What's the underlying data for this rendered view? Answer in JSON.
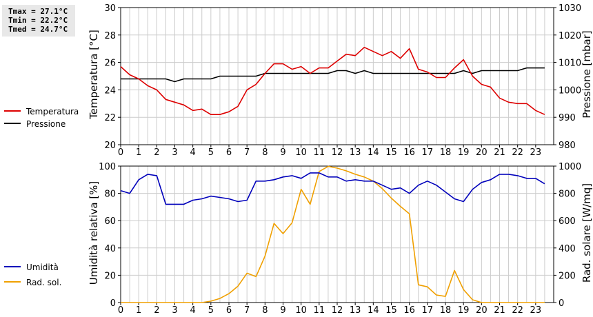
{
  "stats": {
    "tmax": "Tmax = 27.1°C",
    "tmin": "Tmin = 22.2°C",
    "tmed": "Tmed = 24.7°C"
  },
  "colors": {
    "temperature": "#dd0000",
    "pressure": "#000000",
    "humidity": "#0000bb",
    "radiation": "#f0a000",
    "grid": "#cccccc"
  },
  "chart_data": [
    {
      "type": "line",
      "x_ticks": [
        "0",
        "1",
        "2",
        "3",
        "4",
        "5",
        "6",
        "7",
        "8",
        "9",
        "10",
        "11",
        "12",
        "13",
        "14",
        "15",
        "16",
        "17",
        "18",
        "19",
        "20",
        "21",
        "22",
        "23"
      ],
      "xlim": [
        0,
        24
      ],
      "ylabel": "Temperatura [°C]",
      "ylim": [
        20,
        30
      ],
      "y_ticks": [
        "20",
        "22",
        "24",
        "26",
        "28",
        "30"
      ],
      "y2label": "Pressione [mbar]",
      "y2lim": [
        980,
        1030
      ],
      "y2_ticks": [
        "980",
        "990",
        "1000",
        "1010",
        "1020",
        "1030"
      ],
      "grid": true,
      "legend": [
        "Temperatura",
        "Pressione"
      ],
      "series": [
        {
          "name": "Temperatura",
          "axis": "left",
          "x": [
            0,
            0.5,
            1,
            1.5,
            2,
            2.5,
            3,
            3.5,
            4,
            4.5,
            5,
            5.5,
            6,
            6.5,
            7,
            7.5,
            8,
            8.5,
            9,
            9.5,
            10,
            10.5,
            11,
            11.5,
            12,
            12.5,
            13,
            13.5,
            14,
            14.5,
            15,
            15.5,
            16,
            16.5,
            17,
            17.5,
            18,
            18.5,
            19,
            19.5,
            20,
            20.5,
            21,
            21.5,
            22,
            22.5,
            23,
            23.5
          ],
          "y": [
            25.7,
            25.1,
            24.8,
            24.3,
            24.0,
            23.3,
            23.1,
            22.9,
            22.5,
            22.6,
            22.2,
            22.2,
            22.4,
            22.8,
            24.0,
            24.4,
            25.2,
            25.9,
            25.9,
            25.5,
            25.7,
            25.2,
            25.6,
            25.6,
            26.1,
            26.6,
            26.5,
            27.1,
            26.8,
            26.5,
            26.8,
            26.3,
            27.0,
            25.5,
            25.3,
            24.9,
            24.9,
            25.6,
            26.2,
            25.0,
            24.4,
            24.2,
            23.4,
            23.1,
            23.0,
            23.0,
            22.5,
            22.2
          ]
        },
        {
          "name": "Pressione",
          "axis": "right",
          "x": [
            0,
            0.5,
            1,
            1.5,
            2,
            2.5,
            3,
            3.5,
            4,
            4.5,
            5,
            5.5,
            6,
            6.5,
            7,
            7.5,
            8,
            8.5,
            9,
            9.5,
            10,
            10.5,
            11,
            11.5,
            12,
            12.5,
            13,
            13.5,
            14,
            14.5,
            15,
            15.5,
            16,
            16.5,
            17,
            17.5,
            18,
            18.5,
            19,
            19.5,
            20,
            20.5,
            21,
            21.5,
            22,
            22.5,
            23,
            23.5
          ],
          "y": [
            1004,
            1004,
            1004,
            1004,
            1004,
            1004,
            1003,
            1004,
            1004,
            1004,
            1004,
            1005,
            1005,
            1005,
            1005,
            1005,
            1006,
            1006,
            1006,
            1006,
            1006,
            1006,
            1006,
            1006,
            1007,
            1007,
            1006,
            1007,
            1006,
            1006,
            1006,
            1006,
            1006,
            1006,
            1006,
            1006,
            1006,
            1006,
            1007,
            1006,
            1007,
            1007,
            1007,
            1007,
            1007,
            1008,
            1008,
            1008
          ]
        }
      ]
    },
    {
      "type": "line",
      "x_ticks": [
        "0",
        "1",
        "2",
        "3",
        "4",
        "5",
        "6",
        "7",
        "8",
        "9",
        "10",
        "11",
        "12",
        "13",
        "14",
        "15",
        "16",
        "17",
        "18",
        "19",
        "20",
        "21",
        "22",
        "23"
      ],
      "xlim": [
        0,
        24
      ],
      "ylabel": "Umidità relativa [%]",
      "ylim": [
        0,
        100
      ],
      "y_ticks": [
        "0",
        "20",
        "40",
        "60",
        "80",
        "100"
      ],
      "y2label": "Rad. solare [W/mq]",
      "y2lim": [
        0,
        1000
      ],
      "y2_ticks": [
        "0",
        "200",
        "400",
        "600",
        "800",
        "1000"
      ],
      "grid": true,
      "legend": [
        "Umidità",
        "Rad. sol."
      ],
      "series": [
        {
          "name": "Umidità",
          "axis": "left",
          "x": [
            0,
            0.5,
            1,
            1.5,
            2,
            2.5,
            3,
            3.5,
            4,
            4.5,
            5,
            5.5,
            6,
            6.5,
            7,
            7.5,
            8,
            8.5,
            9,
            9.5,
            10,
            10.5,
            11,
            11.5,
            12,
            12.5,
            13,
            13.5,
            14,
            14.5,
            15,
            15.5,
            16,
            16.5,
            17,
            17.5,
            18,
            18.5,
            19,
            19.5,
            20,
            20.5,
            21,
            21.5,
            22,
            22.5,
            23,
            23.5
          ],
          "y": [
            82,
            80,
            90,
            94,
            93,
            72,
            72,
            72,
            75,
            76,
            78,
            77,
            76,
            74,
            75,
            89,
            89,
            90,
            92,
            93,
            91,
            95,
            95,
            92,
            92,
            89,
            90,
            89,
            89,
            86,
            83,
            84,
            80,
            86,
            89,
            86,
            81,
            76,
            74,
            83,
            88,
            90,
            94,
            94,
            93,
            91,
            91,
            87
          ]
        },
        {
          "name": "Rad. sol.",
          "axis": "right",
          "x": [
            0,
            0.5,
            1,
            1.5,
            2,
            2.5,
            3,
            3.5,
            4,
            4.5,
            5,
            5.5,
            6,
            6.5,
            7,
            7.5,
            8,
            8.5,
            9,
            9.5,
            10,
            10.5,
            11,
            11.5,
            12,
            12.5,
            13,
            13.5,
            14,
            14.5,
            15,
            15.5,
            16,
            16.5,
            17,
            17.5,
            18,
            18.5,
            19,
            19.5,
            20,
            20.5,
            21,
            21.5,
            22,
            22.5,
            23,
            23.5
          ],
          "y": [
            0,
            0,
            0,
            0,
            0,
            0,
            0,
            0,
            0,
            0,
            10,
            30,
            65,
            120,
            215,
            190,
            340,
            580,
            505,
            585,
            830,
            720,
            960,
            998,
            985,
            965,
            940,
            920,
            890,
            835,
            765,
            705,
            650,
            130,
            115,
            55,
            45,
            235,
            95,
            20,
            0,
            0,
            0,
            0,
            0,
            0,
            0,
            0
          ]
        }
      ]
    }
  ]
}
